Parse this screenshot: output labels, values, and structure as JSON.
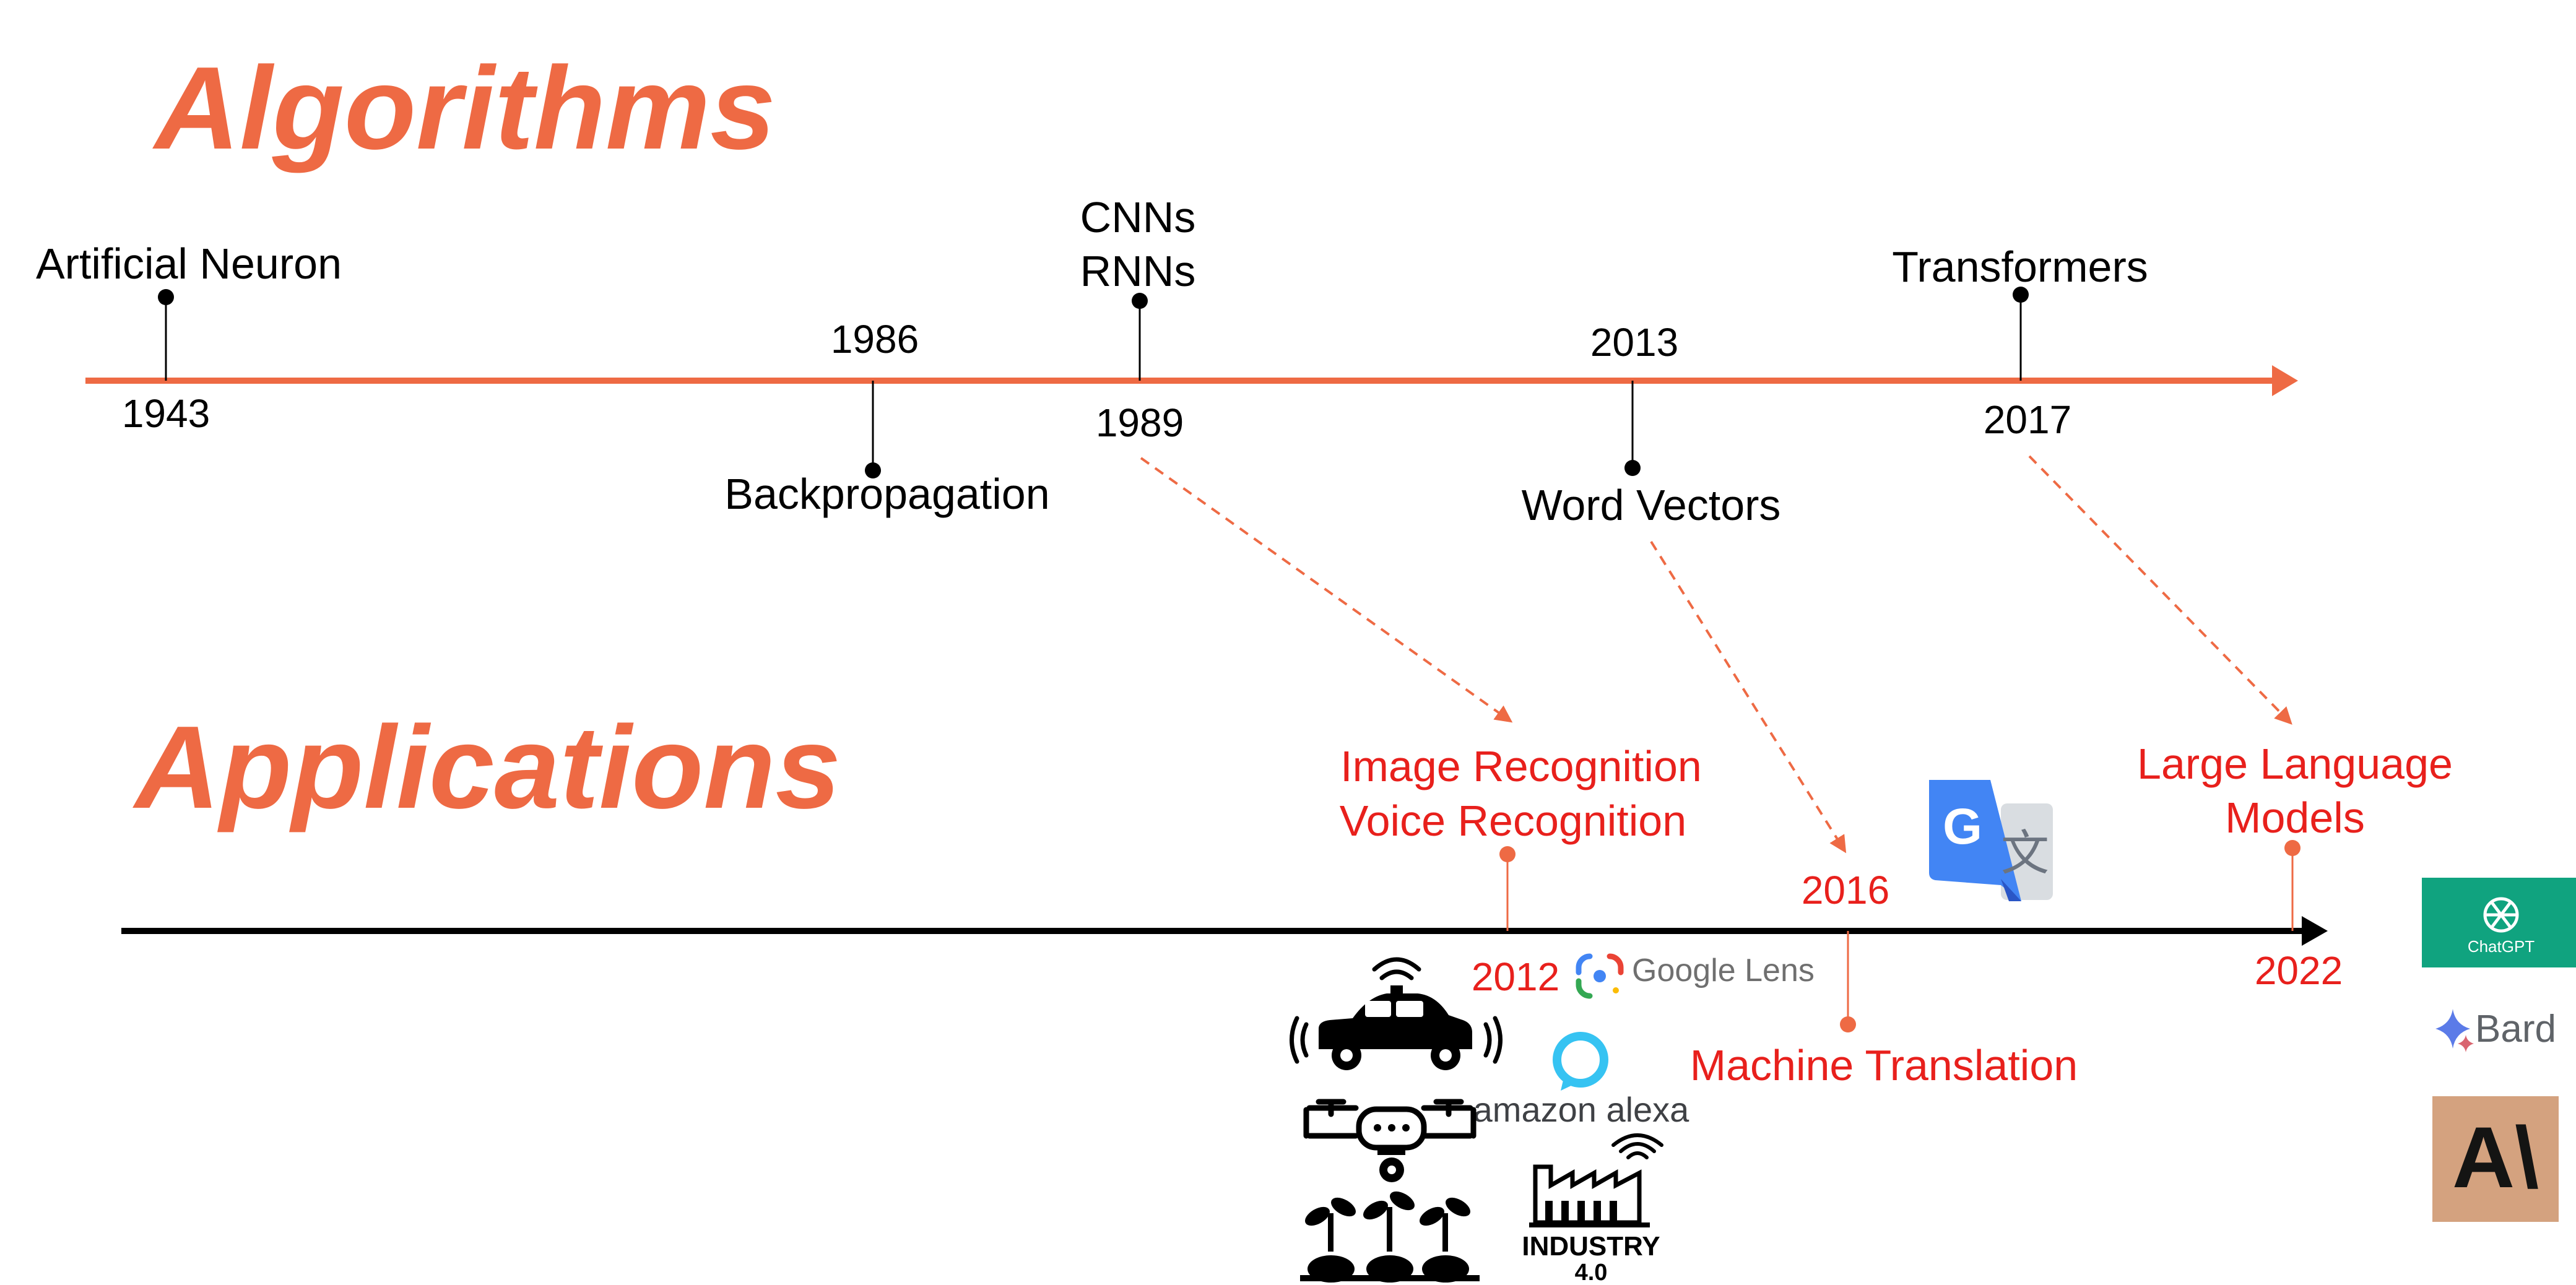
{
  "colors": {
    "accent": "#EE6A44",
    "red": "#E8201C",
    "black": "#000000",
    "chatgpt": "#10A37F",
    "anthropic": "#D4A27F",
    "google_blue": "#4285F4"
  },
  "algorithms": {
    "title": "Algorithms",
    "events": [
      {
        "year": "1943",
        "label": [
          "Artificial Neuron"
        ]
      },
      {
        "year": "1986",
        "label": [
          "Backpropagation"
        ]
      },
      {
        "year": "1989",
        "label": [
          "CNNs",
          "RNNs"
        ]
      },
      {
        "year": "2013",
        "label": [
          "Word Vectors"
        ]
      },
      {
        "year": "2017",
        "label": [
          "Transformers"
        ]
      }
    ]
  },
  "applications": {
    "title": "Applications",
    "events": [
      {
        "year": "2012",
        "label": [
          "Image Recognition",
          "Voice Recognition"
        ]
      },
      {
        "year": "2016",
        "label": [
          "Machine Translation"
        ]
      },
      {
        "year": "2022",
        "label": [
          "Large Language",
          "Models"
        ]
      }
    ]
  },
  "logos": {
    "google_lens": "Google Lens",
    "alexa": "amazon alexa",
    "industry": [
      "INDUSTRY",
      "4.0"
    ],
    "chatgpt": "ChatGPT",
    "bard": "Bard",
    "anthropic": "A\\"
  },
  "icons": [
    "self-driving-car-icon",
    "drone-icon",
    "plants-icon",
    "factory-icon",
    "google-translate-icon",
    "alexa-ring-icon",
    "bard-sparkle-icon",
    "chatgpt-knot-icon"
  ]
}
